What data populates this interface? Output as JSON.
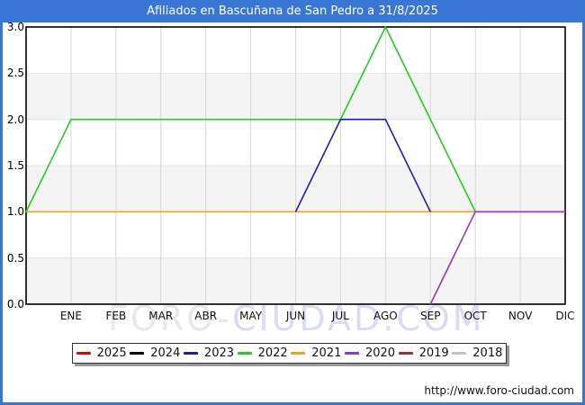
{
  "title_bar": {
    "title": "Afiliados en Bascuñana de San Pedro a 31/8/2025"
  },
  "watermark": {
    "part1": "FORO-",
    "part2": "CIUDAD.COM"
  },
  "footer": {
    "url": "http://www.foro-ciudad.com"
  },
  "colors": {
    "frame": "#3a76d6",
    "plot_border": "#000000",
    "band": "#f3f3f3",
    "grid_vertical": "#d6d6d6",
    "grid_horizontal": "#e4e4e4"
  },
  "chart_data": {
    "type": "line",
    "title": "Afiliados en Bascuñana de San Pedro a 31/8/2025",
    "xlabel": "",
    "ylabel": "",
    "x_labels": [
      "ENE",
      "FEB",
      "MAR",
      "ABR",
      "MAY",
      "JUN",
      "JUL",
      "AGO",
      "SEP",
      "OCT",
      "NOV",
      "DIC"
    ],
    "x_min": 0,
    "x_max": 12,
    "x_note": "x=0 is the unlabeled left edge of the plot; x=1..12 are the ENE..DIC gridlines",
    "y_ticks": [
      "0.0",
      "0.5",
      "1.0",
      "1.5",
      "2.0",
      "2.5",
      "3.0"
    ],
    "y_min": 0,
    "y_max": 3,
    "grid": true,
    "alternating_bands": true,
    "legend_position": "bottom",
    "series": [
      {
        "name": "2025",
        "color": "#e60000",
        "points": [],
        "z": 0
      },
      {
        "name": "2024",
        "color": "#000000",
        "points": [],
        "z": 0
      },
      {
        "name": "2023",
        "color": "#1a1ab8",
        "points": [
          [
            6,
            1
          ],
          [
            7,
            2
          ],
          [
            8,
            2
          ],
          [
            9,
            1
          ]
        ],
        "z": 3
      },
      {
        "name": "2022",
        "color": "#22cc22",
        "points": [
          [
            0,
            1
          ],
          [
            1,
            2
          ],
          [
            7,
            2
          ],
          [
            8,
            3
          ],
          [
            10,
            1
          ]
        ],
        "z": 2
      },
      {
        "name": "2021",
        "color": "#efa226",
        "points": [
          [
            0,
            1
          ],
          [
            12,
            1
          ]
        ],
        "z": 1
      },
      {
        "name": "2020",
        "color": "#9933cc",
        "points": [
          [
            9,
            0
          ],
          [
            10,
            1
          ],
          [
            12,
            1
          ]
        ],
        "z": 4
      },
      {
        "name": "2019",
        "color": "#993333",
        "points": [],
        "z": 0
      },
      {
        "name": "2018",
        "color": "#c4c4c4",
        "points": [],
        "z": 0
      }
    ]
  }
}
